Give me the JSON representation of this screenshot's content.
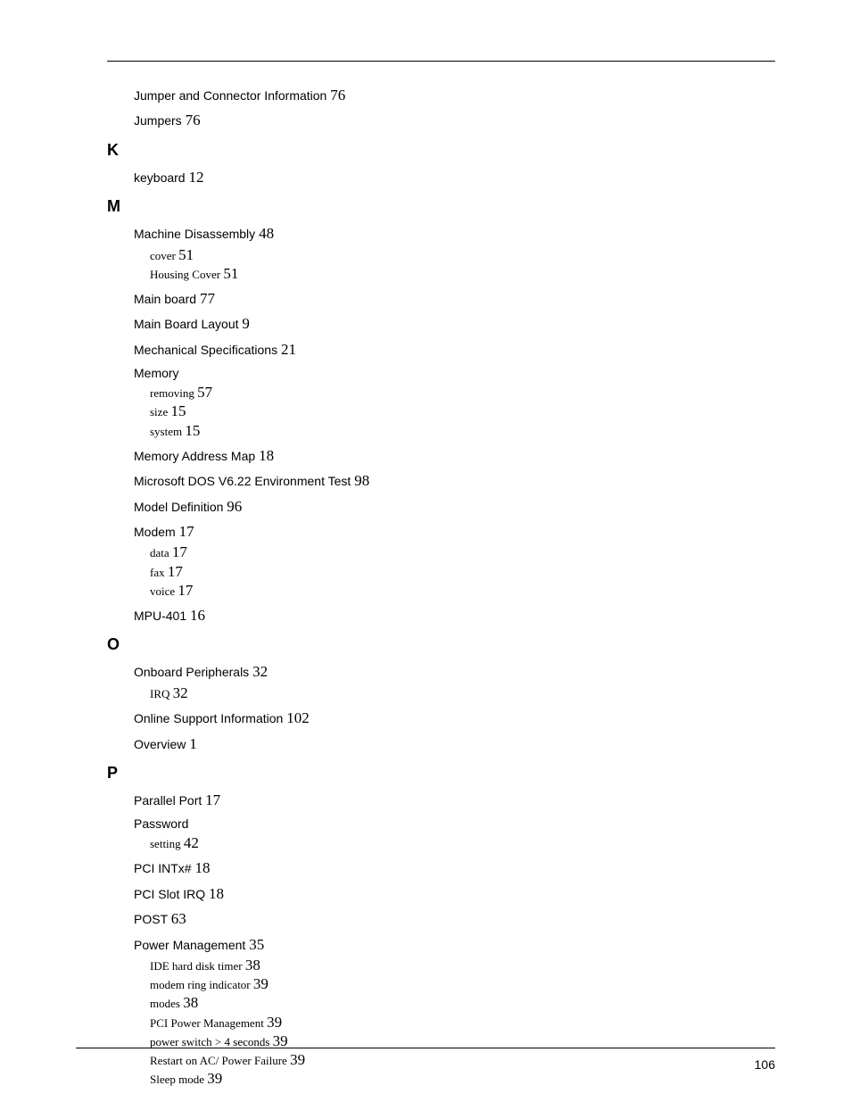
{
  "page_number": "106",
  "sections": [
    {
      "letter": null,
      "entries": [
        {
          "label": "Jumper and Connector Information",
          "page": "76",
          "subs": []
        },
        {
          "label": "Jumpers",
          "page": "76",
          "subs": []
        }
      ]
    },
    {
      "letter": "K",
      "entries": [
        {
          "label": "keyboard",
          "page": "12",
          "subs": []
        }
      ]
    },
    {
      "letter": "M",
      "entries": [
        {
          "label": "Machine Disassembly",
          "page": "48",
          "subs": [
            {
              "label": "cover",
              "page": "51"
            },
            {
              "label": "Housing Cover",
              "page": "51"
            }
          ]
        },
        {
          "label": "Main board",
          "page": "77",
          "subs": []
        },
        {
          "label": "Main Board Layout",
          "page": "9",
          "subs": []
        },
        {
          "label": "Mechanical Specifications",
          "page": "21",
          "subs": []
        },
        {
          "label": "Memory",
          "page": "",
          "subs": [
            {
              "label": "removing",
              "page": "57"
            },
            {
              "label": "size",
              "page": "15"
            },
            {
              "label": "system",
              "page": "15"
            }
          ]
        },
        {
          "label": "Memory Address Map",
          "page": "18",
          "subs": []
        },
        {
          "label": "Microsoft DOS V6.22 Environment Test",
          "page": "98",
          "subs": []
        },
        {
          "label": "Model Definition",
          "page": "96",
          "subs": []
        },
        {
          "label": "Modem",
          "page": "17",
          "subs": [
            {
              "label": "data",
              "page": "17"
            },
            {
              "label": "fax",
              "page": "17"
            },
            {
              "label": "voice",
              "page": "17"
            }
          ]
        },
        {
          "label": "MPU-401",
          "page": "16",
          "subs": []
        }
      ]
    },
    {
      "letter": "O",
      "entries": [
        {
          "label": "Onboard Peripherals",
          "page": "32",
          "subs": [
            {
              "label": "IRQ",
              "page": "32"
            }
          ]
        },
        {
          "label": "Online Support Information",
          "page": "102",
          "subs": []
        },
        {
          "label": "Overview",
          "page": "1",
          "subs": []
        }
      ]
    },
    {
      "letter": "P",
      "entries": [
        {
          "label": "Parallel Port",
          "page": "17",
          "subs": []
        },
        {
          "label": "Password",
          "page": "",
          "subs": [
            {
              "label": "setting",
              "page": "42"
            }
          ]
        },
        {
          "label": "PCI INTx#",
          "page": "18",
          "subs": []
        },
        {
          "label": "PCI Slot IRQ",
          "page": "18",
          "subs": []
        },
        {
          "label": "POST",
          "page": "63",
          "subs": []
        },
        {
          "label": "Power Management",
          "page": "35",
          "subs": [
            {
              "label": "IDE hard disk timer",
              "page": "38"
            },
            {
              "label": "modem ring indicator",
              "page": "39"
            },
            {
              "label": "modes",
              "page": "38"
            },
            {
              "label": "PCI Power Management",
              "page": "39"
            },
            {
              "label": "power switch > 4 seconds",
              "page": "39"
            },
            {
              "label": "Restart on AC/ Power Failure",
              "page": "39"
            },
            {
              "label": "Sleep mode",
              "page": "39"
            }
          ]
        }
      ]
    }
  ]
}
